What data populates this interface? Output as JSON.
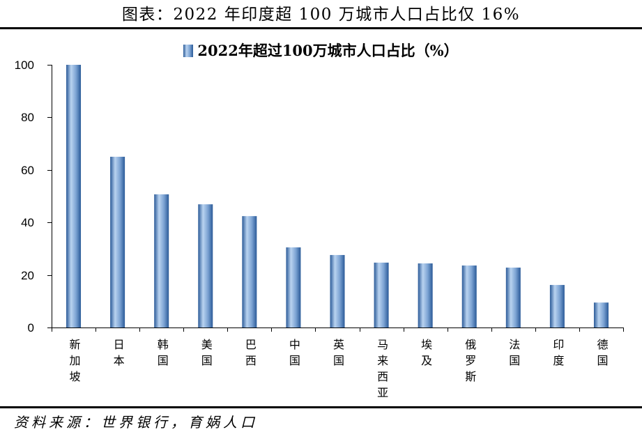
{
  "source_note": "资料来源：世界银行，育娲人口",
  "chart_data": {
    "type": "bar",
    "title": "图表：2022 年印度超 100 万城市人口占比仅 16%",
    "categories": [
      "新加坡",
      "日本",
      "韩国",
      "美国",
      "巴西",
      "中国",
      "英国",
      "马来西亚",
      "埃及",
      "俄罗斯",
      "法国",
      "印度",
      "德国"
    ],
    "series": [
      {
        "name": "2022年超过100万城市人口占比（%）",
        "values": [
          100,
          65,
          50.7,
          46.9,
          42.4,
          30.5,
          27.6,
          24.7,
          24.4,
          23.6,
          22.8,
          16.2,
          9.5
        ]
      }
    ],
    "yticks": [
      0,
      20,
      40,
      60,
      80,
      100
    ],
    "ylim": [
      0,
      100
    ],
    "grid": false,
    "legend": "top-center",
    "bar_gradient": [
      "#2A5A98",
      "#B9D3F0",
      "#7CA3D3",
      "#2A5A98"
    ]
  }
}
